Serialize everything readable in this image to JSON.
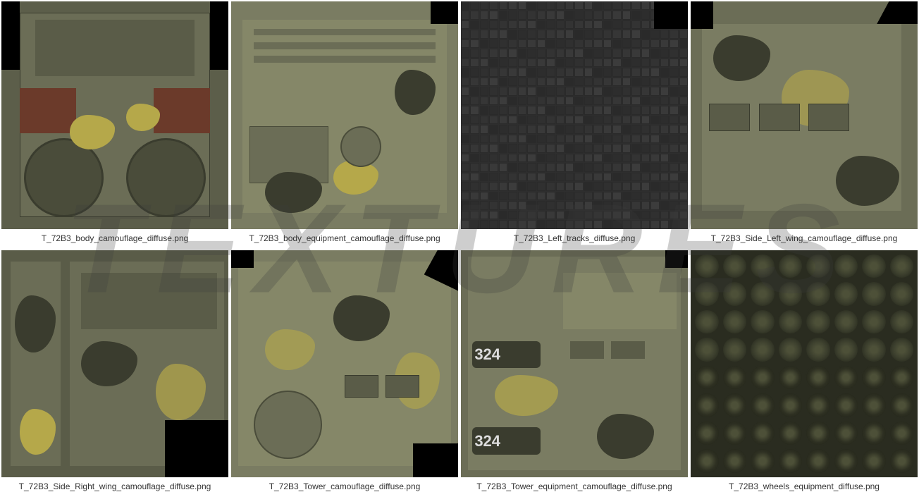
{
  "watermark": "TEXTURES",
  "colors": {
    "camo_base": "#6b6d56",
    "camo_dark": "#3a3c2e",
    "camo_tan": "#8a8668",
    "camo_yellow": "#b5a84a",
    "camo_brown": "#5a4a38",
    "tracks_dark": "#2e2e2e",
    "tracks_mid": "#3d3d3d",
    "wheels_base": "#3a3d2c",
    "wheels_ring": "#4d5038",
    "black": "#000000",
    "rust": "#6b3a2a"
  },
  "textures": [
    {
      "id": "body",
      "label": "T_72B3_body_camouflage_diffuse.png",
      "type": "body"
    },
    {
      "id": "body_equip",
      "label": "T_72B3_body_equipment_camouflage_diffuse.png",
      "type": "equip"
    },
    {
      "id": "left_tracks",
      "label": "T_72B3_Left_tracks_diffuse.png",
      "type": "tracks"
    },
    {
      "id": "side_left",
      "label": "T_72B3_Side_Left_wing_camouflage_diffuse.png",
      "type": "side"
    },
    {
      "id": "side_right",
      "label": "T_72B3_Side_Right_wing_camouflage_diffuse.png",
      "type": "side"
    },
    {
      "id": "tower",
      "label": "T_72B3_Tower_camouflage_diffuse.png",
      "type": "tower"
    },
    {
      "id": "tower_equip",
      "label": "T_72B3_Tower_equipment_camouflage_diffuse.png",
      "type": "tower_equip"
    },
    {
      "id": "wheels",
      "label": "T_72B3_wheels_equipment_diffuse.png",
      "type": "wheels"
    }
  ],
  "number_marking": "324"
}
